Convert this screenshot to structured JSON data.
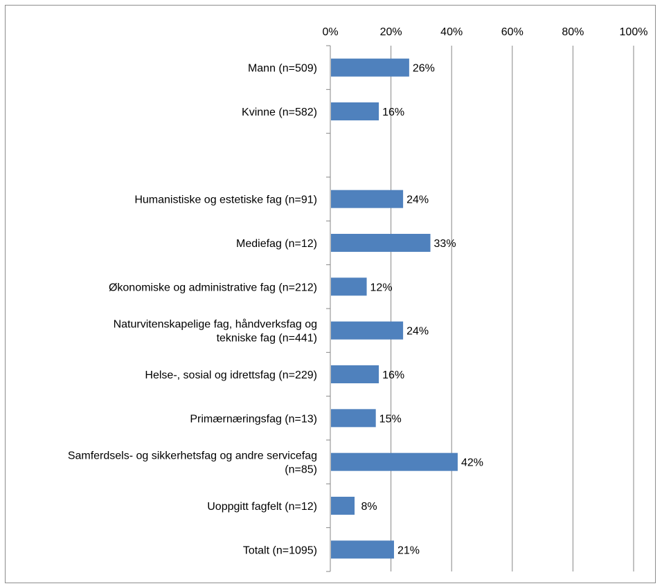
{
  "chart_data": {
    "type": "bar",
    "orientation": "horizontal",
    "categories": [
      [
        "Mann (n=509)"
      ],
      [
        "Kvinne (n=582)"
      ],
      [
        ""
      ],
      [
        "Humanistiske og estetiske fag (n=91)"
      ],
      [
        "Mediefag (n=12)"
      ],
      [
        "Økonomiske og administrative fag (n=212)"
      ],
      [
        "Naturvitenskapelige fag, håndverksfag og",
        "tekniske fag (n=441)"
      ],
      [
        "Helse-, sosial og idrettsfag (n=229)"
      ],
      [
        "Primærnæringsfag (n=13)"
      ],
      [
        "Samferdsels- og sikkerhetsfag og andre servicefag",
        "(n=85)"
      ],
      [
        "Uoppgitt fagfelt (n=12)"
      ],
      [
        "Totalt (n=1095)"
      ]
    ],
    "values": [
      26,
      16,
      null,
      24,
      33,
      12,
      24,
      16,
      15,
      42,
      8,
      21
    ],
    "data_labels": [
      "26%",
      "16%",
      "",
      "24%",
      "33%",
      "12%",
      "24%",
      "16%",
      "15%",
      "42%",
      "8%",
      "21%"
    ],
    "xlim": [
      0,
      100
    ],
    "x_ticks": [
      0,
      20,
      40,
      60,
      80,
      100
    ],
    "x_tick_labels": [
      "0%",
      "20%",
      "40%",
      "60%",
      "80%",
      "100%"
    ],
    "x_axis_position": "top",
    "grid": true,
    "bar_color": "#4f81bd",
    "gridline_color": "#868686",
    "title": "",
    "xlabel": "",
    "ylabel": ""
  }
}
